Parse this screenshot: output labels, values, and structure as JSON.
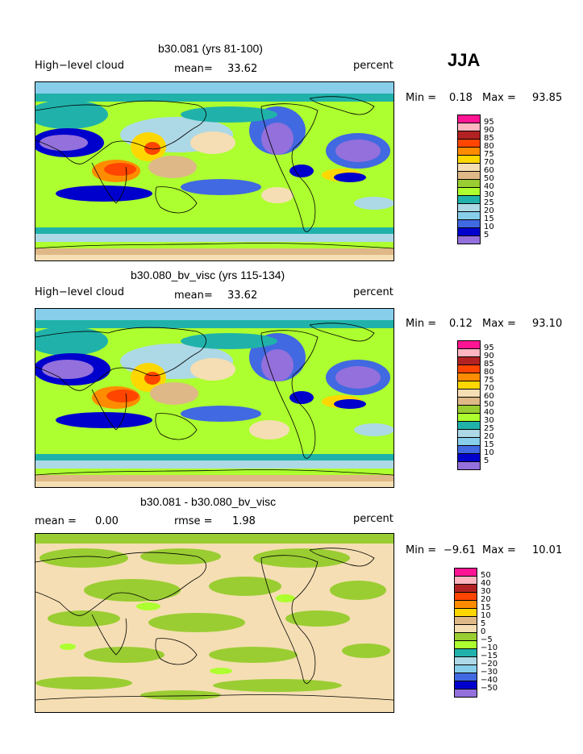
{
  "season": "JJA",
  "palette": {
    "deep_purple": "#9370db",
    "dark_blue": "#0000cd",
    "royal_blue": "#4169e1",
    "light_blue": "#87ceeb",
    "pale_blue": "#add8e6",
    "teal": "#20b2aa",
    "light_green": "#adff2f",
    "olive_green": "#9acd32",
    "wheat": "#f5deb3",
    "tan": "#deb887",
    "yellow": "#ffd700",
    "orange": "#ffa500",
    "dark_orange": "#ff8c00",
    "red": "#ff4500",
    "dark_red": "#b22222",
    "pink": "#ffb6c1",
    "magenta": "#ff1493"
  },
  "panels": [
    {
      "title": "b30.081 (yrs 81-100)",
      "variable": "High−level cloud",
      "stat_label": "mean=",
      "stat_value": "33.62",
      "units": "percent",
      "min_label": "Min =",
      "min_value": "0.18",
      "max_label": "Max =",
      "max_value": "93.85"
    },
    {
      "title": "b30.080_bv_visc (yrs 115-134)",
      "variable": "High−level cloud",
      "stat_label": "mean=",
      "stat_value": "33.62",
      "units": "percent",
      "min_label": "Min =",
      "min_value": "0.12",
      "max_label": "Max =",
      "max_value": "93.10"
    },
    {
      "title": "b30.081 - b30.080_bv_visc",
      "mean_label": "mean =",
      "mean_value": "0.00",
      "rmse_label": "rmse =",
      "rmse_value": "1.98",
      "units": "percent",
      "min_label": "Min =",
      "min_value": "−9.61",
      "max_label": "Max =",
      "max_value": "10.01"
    }
  ],
  "colorbar_abs": {
    "labels": [
      "95",
      "90",
      "85",
      "80",
      "75",
      "70",
      "60",
      "50",
      "40",
      "30",
      "25",
      "20",
      "15",
      "10",
      "5"
    ],
    "colors": [
      "#ff1493",
      "#ffb6c1",
      "#b22222",
      "#ff4500",
      "#ff8c00",
      "#ffd700",
      "#f5deb3",
      "#deb887",
      "#9acd32",
      "#adff2f",
      "#20b2aa",
      "#add8e6",
      "#87ceeb",
      "#4169e1",
      "#0000cd",
      "#9370db"
    ]
  },
  "colorbar_diff": {
    "labels": [
      "50",
      "40",
      "30",
      "20",
      "15",
      "10",
      "5",
      "0",
      "−5",
      "−10",
      "−15",
      "−20",
      "−30",
      "−40",
      "−50"
    ],
    "colors": [
      "#ff1493",
      "#ffb6c1",
      "#b22222",
      "#ff4500",
      "#ff8c00",
      "#ffd700",
      "#deb887",
      "#f5deb3",
      "#9acd32",
      "#adff2f",
      "#20b2aa",
      "#add8e6",
      "#87ceeb",
      "#4169e1",
      "#0000cd",
      "#9370db"
    ]
  }
}
